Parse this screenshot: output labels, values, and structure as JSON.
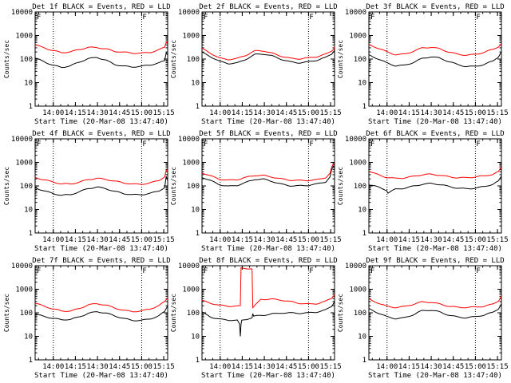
{
  "figure": {
    "title_suffix": "BLACK = Events, RED = LLD",
    "xlabel": "Start Time (20-Mar-08 13:47:40)",
    "ylabel": "Counts/sec"
  },
  "chart_data": {
    "type": "line",
    "yscale": "log",
    "ylim": [
      1,
      10000
    ],
    "xlim_minutes": [
      0,
      90
    ],
    "y_ticks": [
      1,
      10,
      100,
      1000,
      10000
    ],
    "y_tick_labels": [
      "1",
      "10",
      "100",
      "1000",
      "10000"
    ],
    "x_ticks_minutes": [
      12.33,
      27.33,
      42.33,
      57.33,
      72.33,
      87.33
    ],
    "x_tick_labels": [
      "14:00",
      "14:15",
      "14:30",
      "14:45",
      "15:00",
      "15:15"
    ],
    "vertical_markers_minutes": [
      12.33,
      72.33
    ],
    "marker_flag_minutes": 72.33,
    "panels": [
      {
        "title": "Det 1f BLACK = Events, RED = LLD",
        "corner_mark": "F",
        "series": [
          {
            "name": "Events",
            "color": "#000000",
            "x": [
              0,
              6,
              12,
              18,
              24,
              30,
              36,
              42,
              48,
              54,
              60,
              66,
              72,
              78,
              84,
              88,
              89,
              90
            ],
            "y": [
              110,
              82,
              58,
              45,
              50,
              70,
              100,
              120,
              95,
              62,
              50,
              44,
              46,
              55,
              70,
              90,
              200,
              150
            ]
          },
          {
            "name": "LLD",
            "color": "#ff0000",
            "x": [
              0,
              6,
              12,
              18,
              24,
              30,
              36,
              42,
              48,
              54,
              60,
              66,
              72,
              78,
              84,
              88,
              89,
              90
            ],
            "y": [
              420,
              320,
              230,
              180,
              190,
              250,
              320,
              330,
              280,
              210,
              185,
              170,
              175,
              200,
              260,
              330,
              550,
              450
            ]
          }
        ]
      },
      {
        "title": "Det 2f BLACK = Events, RED = LLD",
        "corner_mark": "F",
        "series": [
          {
            "name": "Events",
            "color": "#000000",
            "x": [
              0,
              6,
              12,
              18,
              24,
              30,
              36,
              42,
              48,
              54,
              60,
              66,
              72,
              78,
              84,
              88,
              90
            ],
            "y": [
              180,
              120,
              80,
              68,
              72,
              100,
              150,
              155,
              130,
              100,
              80,
              72,
              75,
              85,
              110,
              160,
              240
            ]
          },
          {
            "name": "LLD",
            "color": "#ff0000",
            "x": [
              0,
              6,
              12,
              18,
              24,
              30,
              36,
              42,
              48,
              54,
              60,
              66,
              72,
              78,
              84,
              88,
              90
            ],
            "y": [
              270,
              180,
              115,
              100,
              105,
              140,
              210,
              220,
              180,
              140,
              110,
              100,
              105,
              120,
              160,
              230,
              320
            ]
          }
        ]
      },
      {
        "title": "Det 3f BLACK = Events, RED = LLD",
        "corner_mark": "F",
        "series": [
          {
            "name": "Events",
            "color": "#000000",
            "x": [
              0,
              6,
              12,
              18,
              24,
              30,
              36,
              42,
              48,
              54,
              60,
              66,
              72,
              78,
              84,
              88,
              90
            ],
            "y": [
              150,
              100,
              65,
              50,
              55,
              75,
              110,
              125,
              105,
              75,
              58,
              50,
              52,
              60,
              80,
              120,
              200
            ]
          },
          {
            "name": "LLD",
            "color": "#ff0000",
            "x": [
              0,
              6,
              12,
              18,
              24,
              30,
              36,
              42,
              48,
              54,
              60,
              66,
              72,
              78,
              84,
              88,
              90
            ],
            "y": [
              380,
              280,
              200,
              160,
              170,
              220,
              290,
              300,
              260,
              200,
              170,
              155,
              160,
              185,
              240,
              320,
              450
            ]
          }
        ]
      },
      {
        "title": "Det 4f BLACK = Events, RED = LLD",
        "corner_mark": "F",
        "series": [
          {
            "name": "Events",
            "color": "#000000",
            "x": [
              0,
              6,
              12,
              18,
              24,
              30,
              36,
              42,
              48,
              54,
              60,
              66,
              72,
              78,
              84,
              88,
              89,
              90
            ],
            "y": [
              90,
              65,
              48,
              38,
              40,
              55,
              80,
              95,
              80,
              58,
              45,
              40,
              42,
              50,
              65,
              90,
              260,
              170
            ]
          },
          {
            "name": "LLD",
            "color": "#ff0000",
            "x": [
              0,
              6,
              12,
              18,
              24,
              30,
              36,
              42,
              48,
              54,
              60,
              66,
              72,
              78,
              84,
              88,
              89,
              90
            ],
            "y": [
              240,
              180,
              140,
              115,
              120,
              150,
              200,
              215,
              185,
              150,
              130,
              120,
              125,
              140,
              175,
              240,
              450,
              350
            ]
          }
        ]
      },
      {
        "title": "Det 5f BLACK = Events, RED = LLD",
        "corner_mark": "F",
        "series": [
          {
            "name": "Events",
            "color": "#000000",
            "x": [
              0,
              6,
              12,
              18,
              24,
              30,
              36,
              42,
              48,
              54,
              60,
              66,
              72,
              78,
              84,
              87,
              88,
              89,
              90
            ],
            "y": [
              230,
              170,
              120,
              100,
              105,
              135,
              180,
              190,
              160,
              125,
              105,
              98,
              100,
              115,
              150,
              250,
              500,
              650,
              700
            ]
          },
          {
            "name": "LLD",
            "color": "#ff0000",
            "x": [
              0,
              6,
              12,
              18,
              24,
              30,
              36,
              42,
              48,
              54,
              60,
              66,
              72,
              78,
              84,
              87,
              88,
              89,
              90
            ],
            "y": [
              380,
              280,
              200,
              170,
              175,
              220,
              280,
              290,
              250,
              200,
              170,
              160,
              165,
              185,
              240,
              370,
              650,
              820,
              860
            ]
          }
        ]
      },
      {
        "title": "Det 6f BLACK = Events, RED = LLD",
        "corner_mark": "F",
        "series": [
          {
            "name": "Events",
            "color": "#000000",
            "x": [
              0,
              6,
              12,
              13,
              18,
              24,
              30,
              36,
              42,
              48,
              54,
              60,
              66,
              72,
              78,
              84,
              88,
              90
            ],
            "y": [
              110,
              85,
              65,
              50,
              75,
              85,
              100,
              115,
              120,
              110,
              95,
              85,
              80,
              82,
              90,
              110,
              150,
              250
            ]
          },
          {
            "name": "LLD",
            "color": "#ff0000",
            "x": [
              0,
              6,
              12,
              18,
              24,
              30,
              36,
              42,
              48,
              54,
              60,
              66,
              72,
              78,
              84,
              88,
              90
            ],
            "y": [
              400,
              300,
              240,
              220,
              225,
              245,
              280,
              300,
              290,
              260,
              235,
              225,
              230,
              250,
              300,
              400,
              650
            ]
          }
        ]
      },
      {
        "title": "Det 7f BLACK = Events, RED = LLD",
        "corner_mark": "F",
        "series": [
          {
            "name": "Events",
            "color": "#000000",
            "x": [
              0,
              6,
              12,
              18,
              24,
              30,
              36,
              42,
              48,
              54,
              60,
              66,
              72,
              78,
              84,
              88,
              90
            ],
            "y": [
              90,
              70,
              55,
              48,
              52,
              70,
              100,
              115,
              95,
              70,
              55,
              48,
              50,
              58,
              75,
              110,
              200
            ]
          },
          {
            "name": "LLD",
            "color": "#ff0000",
            "x": [
              0,
              6,
              12,
              18,
              24,
              30,
              36,
              42,
              48,
              54,
              60,
              66,
              72,
              78,
              84,
              88,
              90
            ],
            "y": [
              250,
              180,
              140,
              120,
              125,
              160,
              220,
              235,
              200,
              155,
              130,
              120,
              125,
              145,
              190,
              280,
              420
            ]
          }
        ]
      },
      {
        "title": "Det 8f BLACK = Events, RED = LLD",
        "corner_mark": "F",
        "series": [
          {
            "name": "Events",
            "color": "#000000",
            "x": [
              0,
              6,
              12,
              18,
              24,
              25.5,
              26,
              26.5,
              27,
              34,
              34.5,
              35,
              40,
              48,
              54,
              60,
              66,
              72,
              78,
              84,
              88,
              90
            ],
            "y": [
              110,
              70,
              55,
              48,
              45,
              30,
              9,
              30,
              45,
              60,
              90,
              70,
              80,
              95,
              100,
              95,
              90,
              95,
              110,
              140,
              200,
              320
            ]
          },
          {
            "name": "LLD",
            "color": "#ff0000",
            "x": [
              0,
              6,
              12,
              18,
              24,
              26,
              26.5,
              27,
              33.5,
              34,
              34.5,
              40,
              48,
              54,
              60,
              66,
              72,
              78,
              84,
              88,
              90
            ],
            "y": [
              350,
              260,
              200,
              180,
              185,
              190,
              7800,
              7800,
              7800,
              7600,
              170,
              400,
              380,
              330,
              280,
              250,
              240,
              260,
              320,
              420,
              600
            ]
          }
        ]
      },
      {
        "title": "Det 9f BLACK = Events, RED = LLD",
        "corner_mark": "F",
        "series": [
          {
            "name": "Events",
            "color": "#000000",
            "x": [
              0,
              6,
              12,
              18,
              24,
              30,
              36,
              42,
              48,
              54,
              60,
              66,
              72,
              78,
              84,
              88,
              90
            ],
            "y": [
              140,
              100,
              72,
              60,
              62,
              80,
              115,
              125,
              110,
              85,
              70,
              62,
              65,
              75,
              100,
              150,
              250
            ]
          },
          {
            "name": "LLD",
            "color": "#ff0000",
            "x": [
              0,
              6,
              12,
              18,
              24,
              30,
              36,
              42,
              48,
              54,
              60,
              66,
              72,
              78,
              84,
              88,
              90
            ],
            "y": [
              380,
              280,
              200,
              170,
              175,
              215,
              280,
              290,
              250,
              200,
              170,
              160,
              165,
              185,
              240,
              340,
              550
            ]
          }
        ]
      }
    ]
  }
}
